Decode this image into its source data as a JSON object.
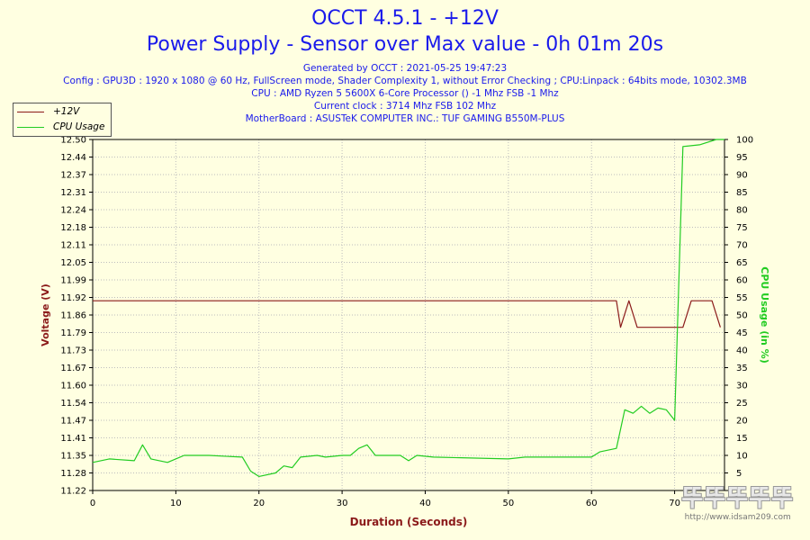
{
  "chart_data": {
    "type": "line",
    "title": "OCCT 4.5.1 - +12V",
    "subtitle": "Power Supply - Sensor over Max value - 0h 01m 20s",
    "info_lines": [
      "Generated by OCCT : 2021-05-25 19:47:23",
      "Config : GPU3D : 1920 x 1080 @ 60 Hz, FullScreen mode, Shader Complexity 1, without Error Checking ; CPU:Linpack : 64bits mode, 10302.3MB",
      "CPU : AMD Ryzen 5 5600X 6-Core Processor () -1 Mhz FSB -1 Mhz",
      "Current clock : 3714 Mhz FSB 102 Mhz",
      "MotherBoard : ASUSTeK COMPUTER INC.: TUF GAMING B550M-PLUS"
    ],
    "xlabel": "Duration (Seconds)",
    "ylabel_left": "Voltage (V)",
    "ylabel_right": "CPU Usage (in %)",
    "xlim": [
      0,
      76
    ],
    "ylim_left": [
      11.22,
      12.5
    ],
    "ylim_right": [
      0,
      100
    ],
    "x_ticks": [
      "0",
      "10",
      "20",
      "30",
      "40",
      "50",
      "60",
      "70"
    ],
    "y_left_ticks": [
      "11.22",
      "11.28",
      "11.35",
      "11.41",
      "11.47",
      "11.54",
      "11.60",
      "11.67",
      "11.73",
      "11.79",
      "11.86",
      "11.92",
      "11.99",
      "12.05",
      "12.11",
      "12.18",
      "12.24",
      "12.31",
      "12.37",
      "12.44",
      "12.50"
    ],
    "y_right_ticks": [
      "0",
      "5",
      "10",
      "15",
      "20",
      "25",
      "30",
      "35",
      "40",
      "45",
      "50",
      "55",
      "60",
      "65",
      "70",
      "75",
      "80",
      "85",
      "90",
      "95",
      "100"
    ],
    "grid": true,
    "legend_position": "top-left",
    "series": [
      {
        "name": "+12V",
        "axis": "left",
        "color": "#8b1a1a",
        "x": [
          0,
          62,
          63,
          63.5,
          64.5,
          65.5,
          70,
          71,
          72,
          73.5,
          74.5,
          75.5
        ],
        "y": [
          11.912,
          11.912,
          11.912,
          11.815,
          11.912,
          11.815,
          11.815,
          11.815,
          11.912,
          11.912,
          11.912,
          11.815
        ]
      },
      {
        "name": "CPU Usage",
        "axis": "right",
        "color": "#22cc22",
        "x": [
          0,
          2,
          5,
          6,
          7,
          9,
          11,
          14,
          18,
          19,
          20,
          22,
          23,
          24,
          25,
          27,
          28,
          30,
          31,
          32,
          33,
          34,
          36,
          37,
          38,
          39,
          41,
          50,
          52,
          60,
          61,
          63,
          64,
          65,
          66,
          67,
          68,
          69,
          70,
          71,
          73,
          75,
          76
        ],
        "y": [
          8,
          9,
          8.5,
          13,
          9,
          8,
          10,
          10,
          9.5,
          5.5,
          4,
          5,
          7,
          6.5,
          9.5,
          10,
          9.5,
          10,
          10,
          12,
          13,
          10,
          10,
          10,
          8.5,
          10,
          9.5,
          9,
          9.5,
          9.5,
          11,
          12,
          23,
          22,
          24,
          22,
          23.5,
          23,
          20,
          98,
          98.5,
          100,
          100
        ]
      }
    ]
  },
  "watermark": {
    "text": "뚜뚜뚜뚜뚜",
    "url": "http://www.idsam209.com"
  }
}
